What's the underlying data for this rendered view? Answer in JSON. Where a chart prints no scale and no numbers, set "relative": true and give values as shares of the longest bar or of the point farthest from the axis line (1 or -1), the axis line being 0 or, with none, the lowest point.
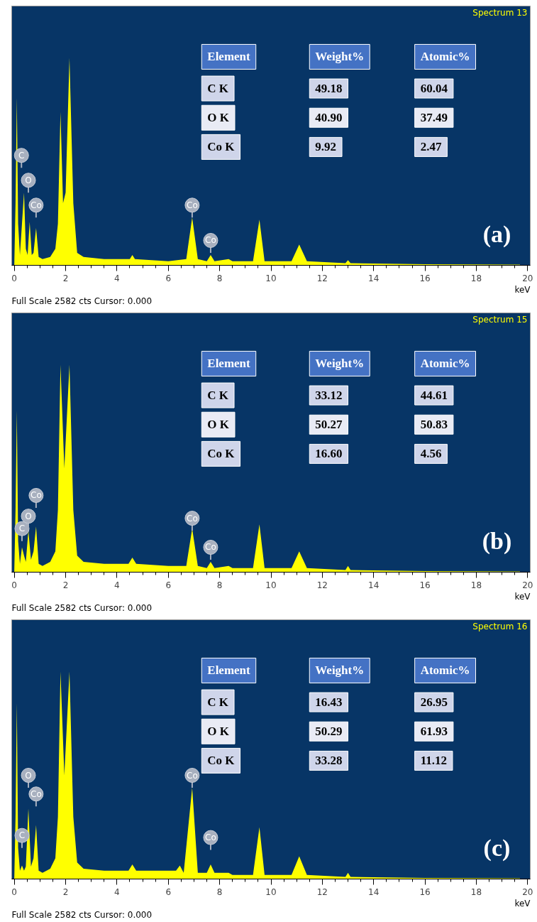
{
  "chart_data": [
    {
      "type": "area",
      "subtitle": "Spectrum 13",
      "xlabel": "keV",
      "relative": true,
      "xlim": [
        -0.1,
        20.1
      ],
      "xticks": [
        0,
        2,
        4,
        6,
        8,
        10,
        12,
        14,
        16,
        18,
        20
      ],
      "grid": false,
      "annotations": [
        "Full Scale 2582 cts Cursor: 0.000",
        "(a)",
        "Element",
        "Weight%",
        "Atomic%",
        "C K",
        "49.18",
        "60.04",
        "O K",
        "40.90",
        "37.49",
        "Co K",
        "9.92",
        "2.47",
        {
          "text": "C",
          "x": 0.28,
          "y": 0.53
        },
        {
          "text": "O",
          "x": 0.55,
          "y": 0.41
        },
        {
          "text": "Co",
          "x": 0.85,
          "y": 0.29
        },
        {
          "text": "Co",
          "x": 6.93,
          "y": 0.29
        },
        {
          "text": "Co",
          "x": 7.65,
          "y": 0.12
        }
      ],
      "x": [
        0,
        0.05,
        0.1,
        0.15,
        0.22,
        0.3,
        0.38,
        0.45,
        0.52,
        0.6,
        0.68,
        0.75,
        0.85,
        0.95,
        1.1,
        1.4,
        1.6,
        1.7,
        1.8,
        1.9,
        2.0,
        2.15,
        2.3,
        2.45,
        2.7,
        3.5,
        4.5,
        4.6,
        4.7,
        6.0,
        6.7,
        6.93,
        7.15,
        7.5,
        7.65,
        7.8,
        8.35,
        8.5,
        9.3,
        9.55,
        9.75,
        10.8,
        11.1,
        11.4,
        12.9,
        13.0,
        13.1,
        16,
        19.7
      ],
      "series": [
        {
          "color": "#ffff00",
          "values": [
            0,
            0.3,
            0.81,
            0.2,
            0.05,
            0.2,
            0.35,
            0.08,
            0.05,
            0.21,
            0.05,
            0.06,
            0.18,
            0.04,
            0.03,
            0.04,
            0.08,
            0.2,
            0.74,
            0.3,
            0.35,
            1.0,
            0.3,
            0.06,
            0.04,
            0.03,
            0.03,
            0.05,
            0.03,
            0.02,
            0.03,
            0.23,
            0.03,
            0.02,
            0.05,
            0.02,
            0.03,
            0.02,
            0.02,
            0.22,
            0.02,
            0.02,
            0.1,
            0.02,
            0.01,
            0.025,
            0.01,
            0.005,
            0.003
          ]
        }
      ]
    },
    {
      "type": "area",
      "subtitle": "Spectrum 15",
      "xlabel": "keV",
      "relative": true,
      "xlim": [
        -0.1,
        20.1
      ],
      "xticks": [
        0,
        2,
        4,
        6,
        8,
        10,
        12,
        14,
        16,
        18,
        20
      ],
      "grid": false,
      "annotations": [
        "Full Scale 2582 cts Cursor: 0.000",
        "(b)",
        "Element",
        "Weight%",
        "Atomic%",
        "C K",
        "33.12",
        "44.61",
        "O K",
        "50.27",
        "50.83",
        "Co K",
        "16.60",
        "4.56",
        {
          "text": "C",
          "x": 0.3,
          "y": 0.21
        },
        {
          "text": "O",
          "x": 0.55,
          "y": 0.27
        },
        {
          "text": "Co",
          "x": 0.85,
          "y": 0.37
        },
        {
          "text": "Co",
          "x": 6.93,
          "y": 0.26
        },
        {
          "text": "Co",
          "x": 7.65,
          "y": 0.12
        }
      ],
      "x": [
        0,
        0.05,
        0.1,
        0.15,
        0.22,
        0.3,
        0.38,
        0.45,
        0.55,
        0.65,
        0.75,
        0.85,
        0.95,
        1.1,
        1.4,
        1.6,
        1.7,
        1.8,
        1.95,
        2.15,
        2.3,
        2.45,
        2.7,
        3.5,
        4.45,
        4.6,
        4.75,
        6.0,
        6.7,
        6.93,
        7.15,
        7.5,
        7.65,
        7.8,
        8.35,
        8.5,
        9.3,
        9.55,
        9.75,
        10.8,
        11.1,
        11.4,
        12.9,
        13.0,
        13.1,
        16,
        19.7
      ],
      "series": [
        {
          "color": "#ffff00",
          "values": [
            0,
            0.3,
            0.78,
            0.15,
            0.04,
            0.12,
            0.08,
            0.05,
            0.2,
            0.06,
            0.1,
            0.22,
            0.04,
            0.03,
            0.05,
            0.1,
            0.3,
            1.0,
            0.5,
            1.0,
            0.3,
            0.08,
            0.05,
            0.04,
            0.04,
            0.07,
            0.04,
            0.03,
            0.03,
            0.21,
            0.03,
            0.02,
            0.05,
            0.02,
            0.03,
            0.02,
            0.02,
            0.23,
            0.02,
            0.02,
            0.1,
            0.02,
            0.01,
            0.03,
            0.01,
            0.005,
            0.003
          ]
        }
      ]
    },
    {
      "type": "area",
      "subtitle": "Spectrum 16",
      "xlabel": "keV",
      "relative": true,
      "xlim": [
        -0.1,
        20.1
      ],
      "xticks": [
        0,
        2,
        4,
        6,
        8,
        10,
        12,
        14,
        16,
        18,
        20
      ],
      "grid": false,
      "annotations": [
        "Full Scale 2582 cts Cursor: 0.000",
        "(c)",
        "Element",
        "Weight%",
        "Atomic%",
        "C K",
        "16.43",
        "26.95",
        "O K",
        "50.29",
        "61.93",
        "Co K",
        "33.28",
        "11.12",
        {
          "text": "C",
          "x": 0.3,
          "y": 0.21
        },
        {
          "text": "O",
          "x": 0.55,
          "y": 0.5
        },
        {
          "text": "Co",
          "x": 0.85,
          "y": 0.41
        },
        {
          "text": "Co",
          "x": 6.93,
          "y": 0.5
        },
        {
          "text": "Co",
          "x": 7.65,
          "y": 0.2
        }
      ],
      "x": [
        0,
        0.05,
        0.1,
        0.15,
        0.22,
        0.3,
        0.38,
        0.45,
        0.55,
        0.65,
        0.75,
        0.85,
        0.95,
        1.1,
        1.4,
        1.6,
        1.7,
        1.8,
        1.95,
        2.15,
        2.3,
        2.45,
        2.7,
        3.5,
        4.45,
        4.6,
        4.75,
        6.0,
        6.3,
        6.45,
        6.6,
        6.93,
        7.15,
        7.5,
        7.65,
        7.8,
        8.35,
        8.5,
        9.3,
        9.55,
        9.75,
        10.8,
        11.1,
        11.4,
        12.9,
        13.0,
        13.1,
        16,
        19.7
      ],
      "series": [
        {
          "color": "#ffff00",
          "values": [
            0,
            0.3,
            0.85,
            0.15,
            0.04,
            0.065,
            0.04,
            0.06,
            0.34,
            0.06,
            0.1,
            0.26,
            0.04,
            0.03,
            0.05,
            0.1,
            0.3,
            1.0,
            0.5,
            1.0,
            0.3,
            0.08,
            0.05,
            0.04,
            0.04,
            0.07,
            0.04,
            0.04,
            0.04,
            0.065,
            0.03,
            0.44,
            0.03,
            0.03,
            0.07,
            0.03,
            0.03,
            0.02,
            0.02,
            0.25,
            0.02,
            0.02,
            0.11,
            0.02,
            0.01,
            0.03,
            0.01,
            0.005,
            0.003
          ]
        }
      ]
    }
  ]
}
